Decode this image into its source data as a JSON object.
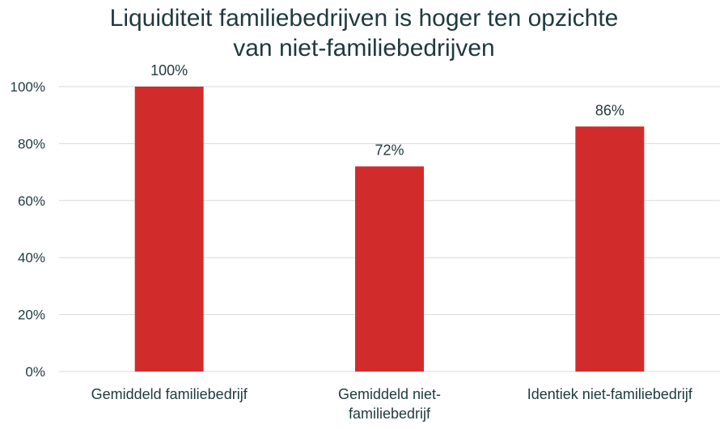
{
  "chart_data": {
    "type": "bar",
    "title": [
      "Liquiditeit familiebedrijven is hoger ten opzichte",
      "van niet-familiebedrijven"
    ],
    "categories": [
      [
        "Gemiddeld familiebedrijf"
      ],
      [
        "Gemiddeld niet-",
        "familiebedrijf"
      ],
      [
        "Identiek niet-familiebedrijf"
      ]
    ],
    "values": [
      100,
      72,
      86
    ],
    "data_labels": [
      "100%",
      "72%",
      "86%"
    ],
    "y_ticks": [
      "0%",
      "20%",
      "40%",
      "60%",
      "80%",
      "100%"
    ],
    "ylim": [
      0,
      100
    ],
    "grid": true,
    "bar_color": "#d22b2b",
    "grid_color": "#d9d9d9"
  }
}
